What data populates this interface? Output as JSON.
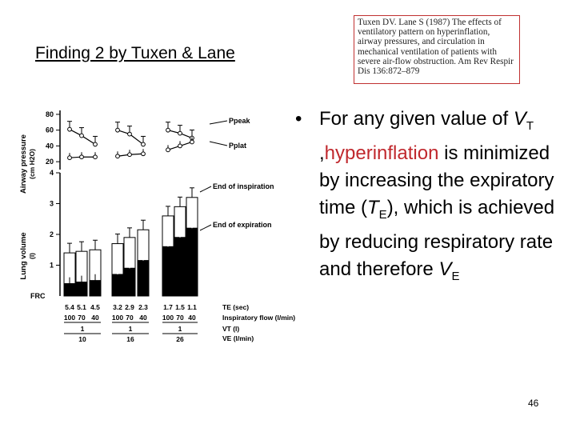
{
  "slide": {
    "title": "Finding 2 by Tuxen & Lane",
    "citation": "Tuxen DV. Lane S (1987) The effects of ventilatory pattern on hyperinflation, airway pressures, and circulation in mechanical ventilation of patients with severe air-flow obstruction. Am Rev Respir Dis 136:872–879",
    "bullet": {
      "p1": "For any given value of ",
      "vt_v": "V",
      "vt_sub": "T",
      "p2": " ,",
      "hyper": "hyperinflation",
      "p3": " is minimized by increasing the expiratory time (",
      "te_t": "T",
      "te_sub": "E",
      "p4": "), which is achieved by reducing respiratory rate and therefore ",
      "ve_v": "V",
      "ve_sub": "E"
    },
    "page_number": "46"
  },
  "colors": {
    "accent_red": "#c0282d",
    "citation_border": "#c03030"
  },
  "chart_data": {
    "type": "bar",
    "airway_pressure": {
      "ylabel": "Airway pressure",
      "yunit": "(cm H2O)",
      "yticks": [
        "80",
        "60",
        "40",
        "20"
      ],
      "ylim": [
        10,
        85
      ],
      "ppeak_label": "Ppeak",
      "pplat_label": "Pplat",
      "groups": [
        {
          "ppeak": [
            61,
            53,
            42
          ],
          "pplat": [
            25,
            26,
            26
          ]
        },
        {
          "ppeak": [
            60,
            55,
            42
          ],
          "pplat": [
            27,
            29,
            30
          ]
        },
        {
          "ppeak": [
            60,
            56,
            50
          ],
          "pplat": [
            35,
            40,
            45
          ]
        }
      ]
    },
    "lung_volume": {
      "ylabel": "Lung volume",
      "yunit": "(l)",
      "yticks": [
        "4",
        "3",
        "2",
        "1"
      ],
      "frc_label": "FRC",
      "ylim": [
        0,
        4
      ],
      "end_insp_label": "End of inspiration",
      "end_exp_label": "End of expiration",
      "groups": [
        {
          "end_expiration": [
            0.4,
            0.45,
            0.5
          ],
          "end_inspiration": [
            1.4,
            1.45,
            1.5
          ]
        },
        {
          "end_expiration": [
            0.7,
            0.9,
            1.15
          ],
          "end_inspiration": [
            1.7,
            1.9,
            2.15
          ]
        },
        {
          "end_expiration": [
            1.6,
            1.9,
            2.2
          ],
          "end_inspiration": [
            2.6,
            2.9,
            3.2
          ]
        }
      ]
    },
    "xaxis": {
      "te_label": "TE (sec)",
      "flow_label": "Inspiratory flow (l/min)",
      "vt_label": "VT (l)",
      "ve_label": "VE (l/min)",
      "groups": [
        {
          "te": [
            "5.4",
            "5.1",
            "4.5"
          ],
          "flow": [
            "100",
            "70",
            "40"
          ],
          "vt": "1",
          "ve": "10"
        },
        {
          "te": [
            "3.2",
            "2.9",
            "2.3"
          ],
          "flow": [
            "100",
            "70",
            "40"
          ],
          "vt": "1",
          "ve": "16"
        },
        {
          "te": [
            "1.7",
            "1.5",
            "1.1"
          ],
          "flow": [
            "100",
            "70",
            "40"
          ],
          "vt": "1",
          "ve": "26"
        }
      ]
    }
  }
}
